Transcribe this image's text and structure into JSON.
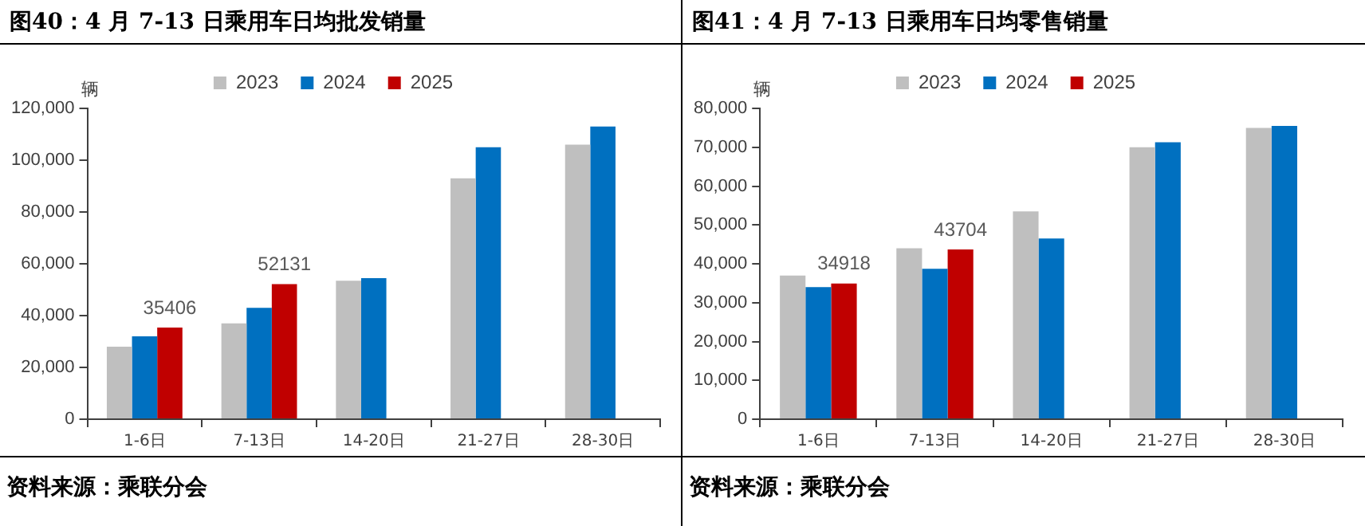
{
  "chart_data": [
    {
      "type": "bar",
      "title": "图40：4 月 7-13 日乘用车日均批发销量",
      "ylabel": "辆",
      "categories": [
        "1-6日",
        "7-13日",
        "14-20日",
        "21-27日",
        "28-30日"
      ],
      "series": [
        {
          "name": "2023",
          "color": "#bfbfbf",
          "values": [
            28000,
            37000,
            53500,
            93000,
            106000
          ]
        },
        {
          "name": "2024",
          "color": "#0070c0",
          "values": [
            32000,
            43000,
            54500,
            105000,
            113000
          ]
        },
        {
          "name": "2025",
          "color": "#c00000",
          "values": [
            35406,
            52131,
            null,
            null,
            null
          ],
          "value_labels": [
            "35406",
            "52131",
            null,
            null,
            null
          ]
        }
      ],
      "ylim": [
        0,
        120000
      ],
      "yticks": [
        {
          "value": 0,
          "label": "0"
        },
        {
          "value": 20000,
          "label": "20,000"
        },
        {
          "value": 40000,
          "label": "40,000"
        },
        {
          "value": 60000,
          "label": "60,000"
        },
        {
          "value": 80000,
          "label": "80,000"
        },
        {
          "value": 100000,
          "label": "100,000"
        },
        {
          "value": 120000,
          "label": "120,000"
        }
      ],
      "grid": false,
      "legend": "top",
      "annotations": [
        "资料来源：乘联分会"
      ]
    },
    {
      "type": "bar",
      "title": "图41：4 月 7-13 日乘用车日均零售销量",
      "ylabel": "辆",
      "categories": [
        "1-6日",
        "7-13日",
        "14-20日",
        "21-27日",
        "28-30日"
      ],
      "series": [
        {
          "name": "2023",
          "color": "#bfbfbf",
          "values": [
            37000,
            44000,
            53500,
            70000,
            75000
          ]
        },
        {
          "name": "2024",
          "color": "#0070c0",
          "values": [
            34000,
            38700,
            46500,
            71300,
            75500
          ]
        },
        {
          "name": "2025",
          "color": "#c00000",
          "values": [
            34918,
            43704,
            null,
            null,
            null
          ],
          "value_labels": [
            "34918",
            "43704",
            null,
            null,
            null
          ]
        }
      ],
      "ylim": [
        0,
        80000
      ],
      "yticks": [
        {
          "value": 0,
          "label": "0"
        },
        {
          "value": 10000,
          "label": "10,000"
        },
        {
          "value": 20000,
          "label": "20,000"
        },
        {
          "value": 30000,
          "label": "30,000"
        },
        {
          "value": 40000,
          "label": "40,000"
        },
        {
          "value": 50000,
          "label": "50,000"
        },
        {
          "value": 60000,
          "label": "60,000"
        },
        {
          "value": 70000,
          "label": "70,000"
        },
        {
          "value": 80000,
          "label": "80,000"
        }
      ],
      "grid": false,
      "legend": "top",
      "annotations": [
        "资料来源：乘联分会"
      ]
    }
  ]
}
